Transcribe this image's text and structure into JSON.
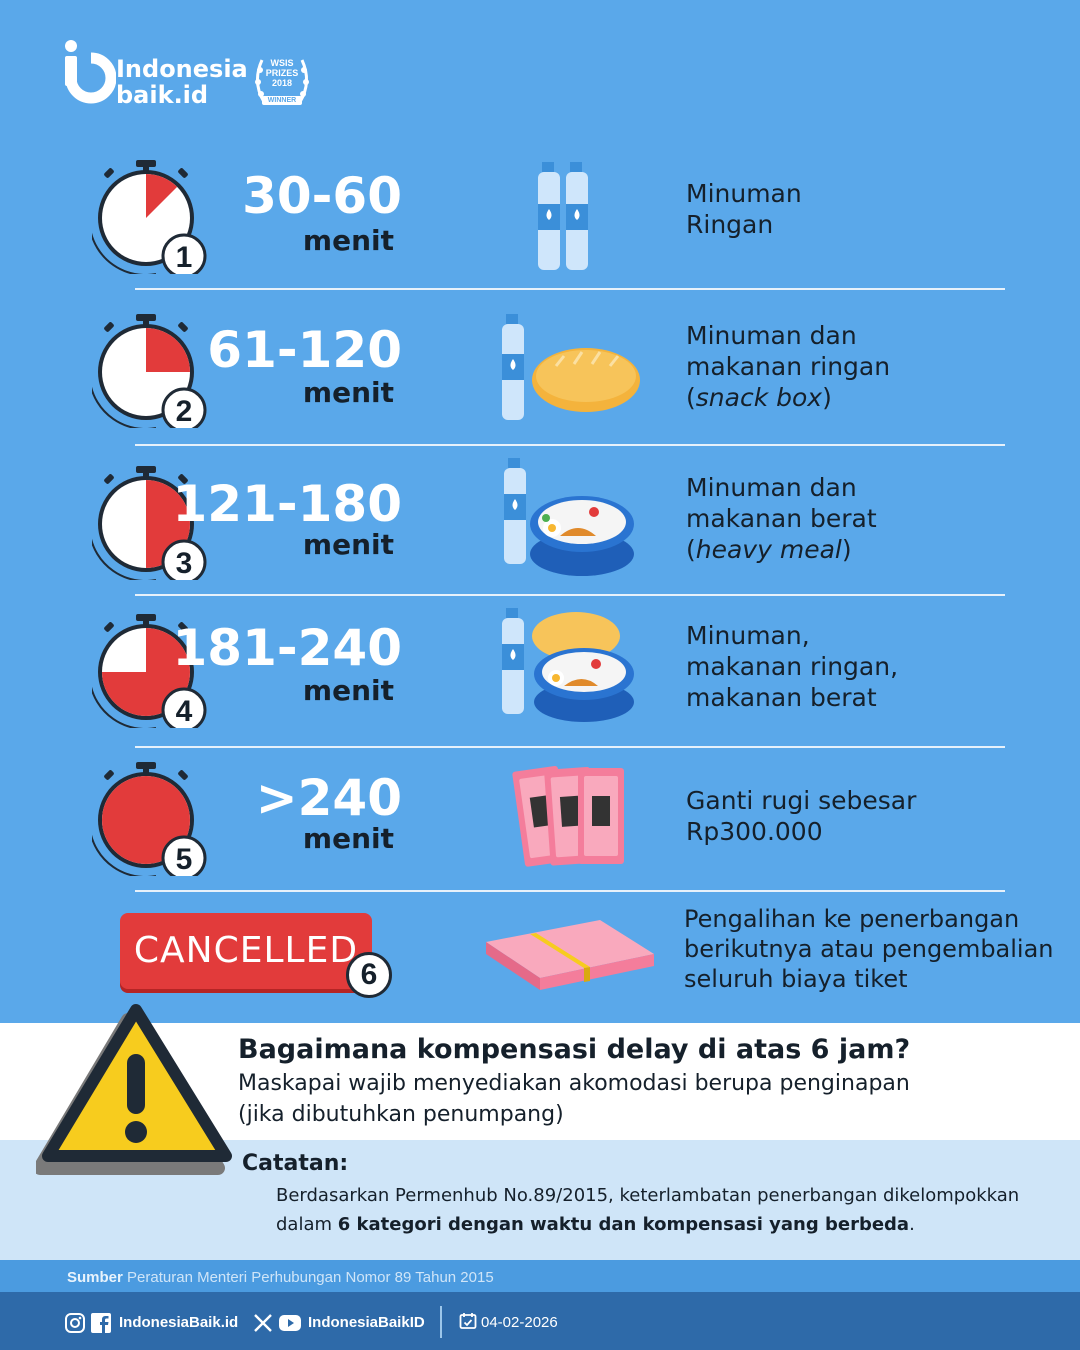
{
  "brand": {
    "line1": "Indonesia",
    "line2": "baik.id"
  },
  "award": {
    "line1": "WSIS",
    "line2": "PRIZES",
    "line3": "2018",
    "winner": "WINNER"
  },
  "rows": [
    {
      "number": "1",
      "range": "30-60",
      "unit": "menit",
      "desc": [
        "Minuman",
        "Ringan"
      ],
      "fill_fraction": 0.125,
      "illustration": "water-bottles"
    },
    {
      "number": "2",
      "range": "61-120",
      "unit": "menit",
      "desc": [
        "Minuman dan",
        "makanan ringan"
      ],
      "desc_italic": "snack box",
      "fill_fraction": 0.25,
      "illustration": "bottle-and-bread"
    },
    {
      "number": "3",
      "range": "121-180",
      "unit": "menit",
      "desc": [
        "Minuman dan",
        "makanan berat"
      ],
      "desc_italic": "heavy meal",
      "fill_fraction": 0.5,
      "illustration": "bottle-and-lunchbox"
    },
    {
      "number": "4",
      "range": "181-240",
      "unit": "menit",
      "desc": [
        "Minuman,",
        "makanan ringan,",
        "makanan berat"
      ],
      "fill_fraction": 0.75,
      "illustration": "bottle-bread-lunchbox"
    },
    {
      "number": "5",
      "range": ">240",
      "unit": "menit",
      "desc": [
        "Ganti rugi sebesar",
        "Rp300.000"
      ],
      "fill_fraction": 1.0,
      "illustration": "banknotes"
    }
  ],
  "cancelled": {
    "label": "CANCELLED",
    "number": "6",
    "desc": [
      "Pengalihan ke penerbangan",
      "berikutnya atau pengembalian",
      "seluruh biaya tiket"
    ],
    "illustration": "money-stack"
  },
  "warning": {
    "title": "Bagaimana kompensasi delay di atas 6 jam?",
    "line1": "Maskapai wajib menyediakan akomodasi berupa penginapan",
    "line2": "(jika dibutuhkan penumpang)"
  },
  "note": {
    "title": "Catatan:",
    "line1": "Berdasarkan Permenhub No.89/2015, keterlambatan penerbangan dikelompokkan",
    "line2_prefix": "dalam ",
    "line2_bold": "6 kategori dengan waktu dan kompensasi yang berbeda",
    "line2_suffix": "."
  },
  "source": {
    "label": "Sumber",
    "text": "Peraturan Menteri Perhubungan Nomor 89 Tahun 2015"
  },
  "footer": {
    "handle1": "IndonesiaBaik.id",
    "handle2": "IndonesiaBaikID",
    "date": "04-02-2026"
  },
  "colors": {
    "background": "#5aa8ea",
    "accent_red": "#e23b3b",
    "dark": "#15202b",
    "warning_yellow": "#f7cc1e",
    "footer": "#2e6aa9"
  }
}
